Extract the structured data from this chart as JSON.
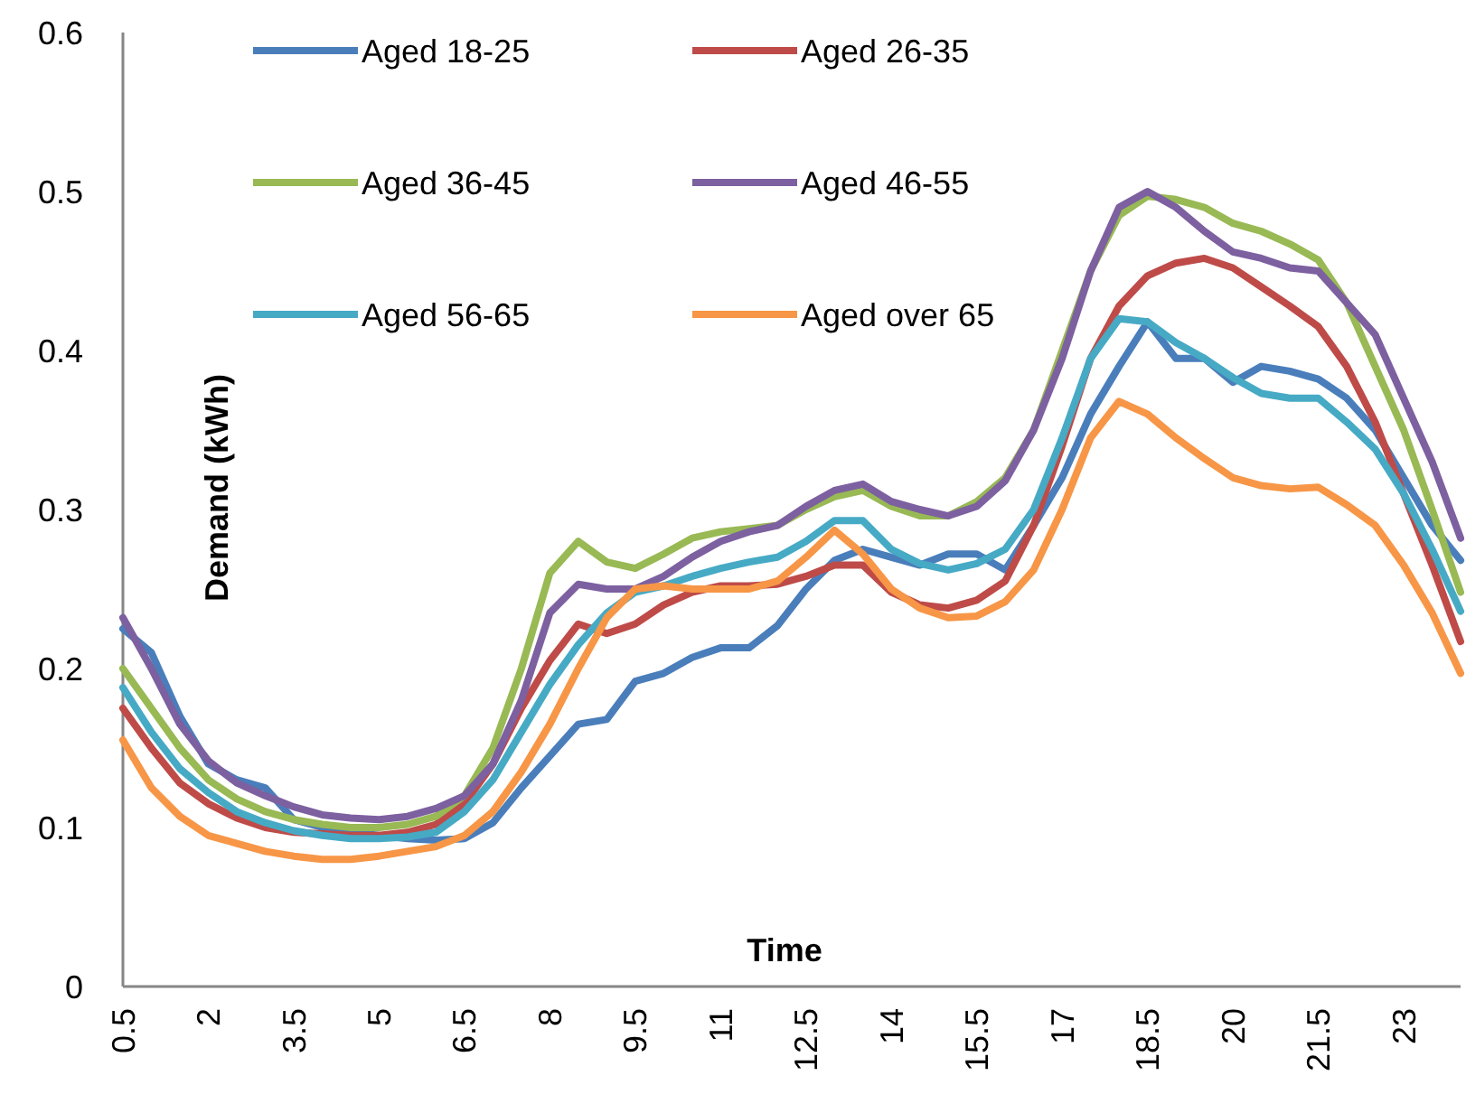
{
  "chart_data": {
    "type": "line",
    "xlabel": "Time",
    "ylabel": "Demand (kWh)",
    "x": [
      0.5,
      1,
      1.5,
      2,
      2.5,
      3,
      3.5,
      4,
      4.5,
      5,
      5.5,
      6,
      6.5,
      7,
      7.5,
      8,
      8.5,
      9,
      9.5,
      10,
      10.5,
      11,
      11.5,
      12,
      12.5,
      13,
      13.5,
      14,
      14.5,
      15,
      15.5,
      16,
      16.5,
      17,
      17.5,
      18,
      18.5,
      19,
      19.5,
      20,
      20.5,
      21,
      21.5,
      22,
      22.5,
      23,
      23.5,
      24
    ],
    "xlim": [
      0.5,
      24
    ],
    "xticks": [
      0.5,
      2,
      3.5,
      5,
      6.5,
      8,
      9.5,
      11,
      12.5,
      14,
      15.5,
      17,
      18.5,
      20,
      21.5,
      23
    ],
    "ylim": [
      0,
      0.6
    ],
    "yticks": [
      0,
      0.1,
      0.2,
      0.3,
      0.4,
      0.5,
      0.6
    ],
    "grid": false,
    "legend": "top",
    "marker": "none",
    "line_style": "solid",
    "series": [
      {
        "name": "Aged 18-25",
        "color": "#4a7ebb",
        "values": [
          0.225,
          0.21,
          0.17,
          0.14,
          0.13,
          0.125,
          0.105,
          0.1,
          0.097,
          0.095,
          0.093,
          0.092,
          0.093,
          0.103,
          0.125,
          0.145,
          0.165,
          0.168,
          0.192,
          0.197,
          0.207,
          0.213,
          0.213,
          0.227,
          0.25,
          0.268,
          0.275,
          0.27,
          0.265,
          0.272,
          0.272,
          0.262,
          0.29,
          0.32,
          0.36,
          0.39,
          0.418,
          0.395,
          0.395,
          0.38,
          0.39,
          0.387,
          0.382,
          0.37,
          0.35,
          0.32,
          0.29,
          0.268
        ]
      },
      {
        "name": "Aged 26-35",
        "color": "#be4b48",
        "values": [
          0.175,
          0.15,
          0.128,
          0.115,
          0.106,
          0.1,
          0.097,
          0.096,
          0.095,
          0.095,
          0.097,
          0.102,
          0.115,
          0.14,
          0.175,
          0.205,
          0.228,
          0.222,
          0.228,
          0.24,
          0.248,
          0.252,
          0.252,
          0.253,
          0.258,
          0.265,
          0.265,
          0.248,
          0.24,
          0.238,
          0.243,
          0.255,
          0.29,
          0.34,
          0.395,
          0.428,
          0.447,
          0.455,
          0.458,
          0.452,
          0.44,
          0.428,
          0.415,
          0.39,
          0.355,
          0.31,
          0.265,
          0.217
        ]
      },
      {
        "name": "Aged 36-45",
        "color": "#98b954",
        "values": [
          0.2,
          0.175,
          0.15,
          0.13,
          0.118,
          0.11,
          0.105,
          0.102,
          0.1,
          0.1,
          0.102,
          0.107,
          0.12,
          0.15,
          0.2,
          0.26,
          0.28,
          0.267,
          0.263,
          0.272,
          0.282,
          0.286,
          0.288,
          0.29,
          0.3,
          0.308,
          0.312,
          0.302,
          0.296,
          0.296,
          0.305,
          0.32,
          0.35,
          0.4,
          0.45,
          0.485,
          0.497,
          0.495,
          0.49,
          0.48,
          0.475,
          0.467,
          0.457,
          0.43,
          0.39,
          0.35,
          0.3,
          0.248
        ]
      },
      {
        "name": "Aged 46-55",
        "color": "#7d60a0",
        "values": [
          0.232,
          0.2,
          0.165,
          0.142,
          0.128,
          0.12,
          0.113,
          0.108,
          0.106,
          0.105,
          0.107,
          0.112,
          0.12,
          0.14,
          0.18,
          0.235,
          0.253,
          0.25,
          0.25,
          0.258,
          0.27,
          0.28,
          0.286,
          0.29,
          0.302,
          0.312,
          0.316,
          0.305,
          0.3,
          0.296,
          0.302,
          0.318,
          0.35,
          0.395,
          0.45,
          0.49,
          0.5,
          0.49,
          0.475,
          0.462,
          0.458,
          0.452,
          0.45,
          0.43,
          0.41,
          0.37,
          0.33,
          0.282
        ]
      },
      {
        "name": "Aged 56-65",
        "color": "#46aac5",
        "values": [
          0.188,
          0.16,
          0.137,
          0.122,
          0.11,
          0.103,
          0.098,
          0.095,
          0.093,
          0.093,
          0.094,
          0.097,
          0.11,
          0.13,
          0.16,
          0.19,
          0.215,
          0.235,
          0.248,
          0.252,
          0.258,
          0.263,
          0.267,
          0.27,
          0.28,
          0.293,
          0.293,
          0.275,
          0.266,
          0.262,
          0.266,
          0.275,
          0.3,
          0.345,
          0.395,
          0.42,
          0.418,
          0.405,
          0.395,
          0.383,
          0.373,
          0.37,
          0.37,
          0.355,
          0.338,
          0.31,
          0.275,
          0.236
        ]
      },
      {
        "name": "Aged over 65",
        "color": "#f79646",
        "values": [
          0.155,
          0.125,
          0.107,
          0.095,
          0.09,
          0.085,
          0.082,
          0.08,
          0.08,
          0.082,
          0.085,
          0.088,
          0.095,
          0.11,
          0.135,
          0.165,
          0.2,
          0.232,
          0.25,
          0.252,
          0.25,
          0.25,
          0.25,
          0.255,
          0.27,
          0.287,
          0.272,
          0.25,
          0.238,
          0.232,
          0.233,
          0.242,
          0.262,
          0.3,
          0.345,
          0.368,
          0.36,
          0.345,
          0.332,
          0.32,
          0.315,
          0.313,
          0.314,
          0.303,
          0.29,
          0.265,
          0.235,
          0.197
        ]
      }
    ]
  }
}
